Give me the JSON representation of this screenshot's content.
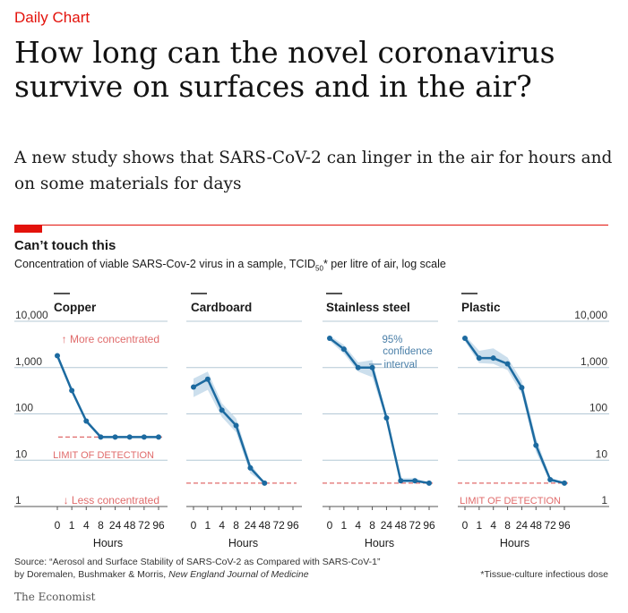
{
  "header": {
    "kicker": "Daily Chart",
    "headline": "How long can the novel coronavirus survive on surfaces and in the air?",
    "subhead": "A new study shows that SARS-CoV-2 can linger in the air for hours and on some materials for days"
  },
  "chart_header": {
    "title": "Can’t touch this",
    "subtitle_pre": "Concentration of viable SARS-Cov-2 virus in a sample, TCID",
    "subtitle_sub": "50",
    "subtitle_post": "* per litre of air, log scale"
  },
  "footer": {
    "source_line1": "Source: “Aerosol and Surface Stability of SARS-CoV-2 as Compared with SARS-CoV-1”",
    "source_line2_pre": "by Doremalen, Bushmaker & Morris, ",
    "source_line2_journal": "New England Journal of Medicine",
    "footnote": "*Tissue-culture infectious dose",
    "brand": "The Economist"
  },
  "colors": {
    "accent": "#e3120b",
    "line": "#1c6aa0",
    "band": "#c3d9ea",
    "grid": "#b4c8d6",
    "limit": "#e06b6b"
  },
  "chart_data": {
    "type": "line",
    "y_scale": "log",
    "ylim": [
      1,
      10000
    ],
    "yticks": [
      "1",
      "10",
      "100",
      "1,000",
      "10,000"
    ],
    "x_categories": [
      "0",
      "1",
      "4",
      "8",
      "24",
      "48",
      "72",
      "96"
    ],
    "xlabel": "Hours",
    "annotations": {
      "more": "↑ More concentrated",
      "less": "↓ Less concentrated",
      "limit_copper": "LIMIT OF DETECTION",
      "limit_plastic": "LIMIT OF DETECTION",
      "ci_line1": "95%",
      "ci_line2": "confidence",
      "ci_line3": "interval"
    },
    "panels": [
      {
        "name": "Copper",
        "limit": 31.6,
        "x": [
          "0",
          "1",
          "4",
          "8",
          "24",
          "48",
          "72",
          "96"
        ],
        "values": [
          1800,
          320,
          70,
          31.6,
          31.6,
          31.6,
          31.6,
          31.6
        ],
        "ci_low": [
          1650,
          290,
          62,
          31.6,
          31.6,
          31.6,
          31.6,
          31.6
        ],
        "ci_high": [
          1950,
          350,
          78,
          31.6,
          31.6,
          31.6,
          31.6,
          31.6
        ]
      },
      {
        "name": "Cardboard",
        "limit": 3.2,
        "x": [
          "0",
          "1",
          "4",
          "8",
          "24",
          "48"
        ],
        "values": [
          380,
          560,
          120,
          56,
          6.8,
          3.2
        ],
        "ci_low": [
          230,
          330,
          85,
          40,
          5.2,
          3.2
        ],
        "ci_high": [
          580,
          820,
          170,
          80,
          8.6,
          3.2
        ]
      },
      {
        "name": "Stainless steel",
        "limit": 3.2,
        "x": [
          "0",
          "1",
          "4",
          "8",
          "24",
          "48",
          "72",
          "96"
        ],
        "values": [
          4300,
          2500,
          1000,
          1000,
          82,
          3.6,
          3.6,
          3.2
        ],
        "ci_low": [
          3800,
          2000,
          820,
          620,
          70,
          3.3,
          3.3,
          3.2
        ],
        "ci_high": [
          4900,
          3100,
          1300,
          1450,
          95,
          4.1,
          4.1,
          3.2
        ]
      },
      {
        "name": "Plastic",
        "limit": 3.2,
        "x": [
          "0",
          "1",
          "4",
          "8",
          "24",
          "48",
          "72",
          "96"
        ],
        "values": [
          4300,
          1600,
          1600,
          1200,
          370,
          21,
          3.8,
          3.2
        ],
        "ci_low": [
          3700,
          1250,
          1200,
          880,
          270,
          15,
          3.4,
          3.2
        ],
        "ci_high": [
          5000,
          2300,
          2600,
          1650,
          520,
          30,
          4.3,
          3.2
        ]
      }
    ]
  }
}
